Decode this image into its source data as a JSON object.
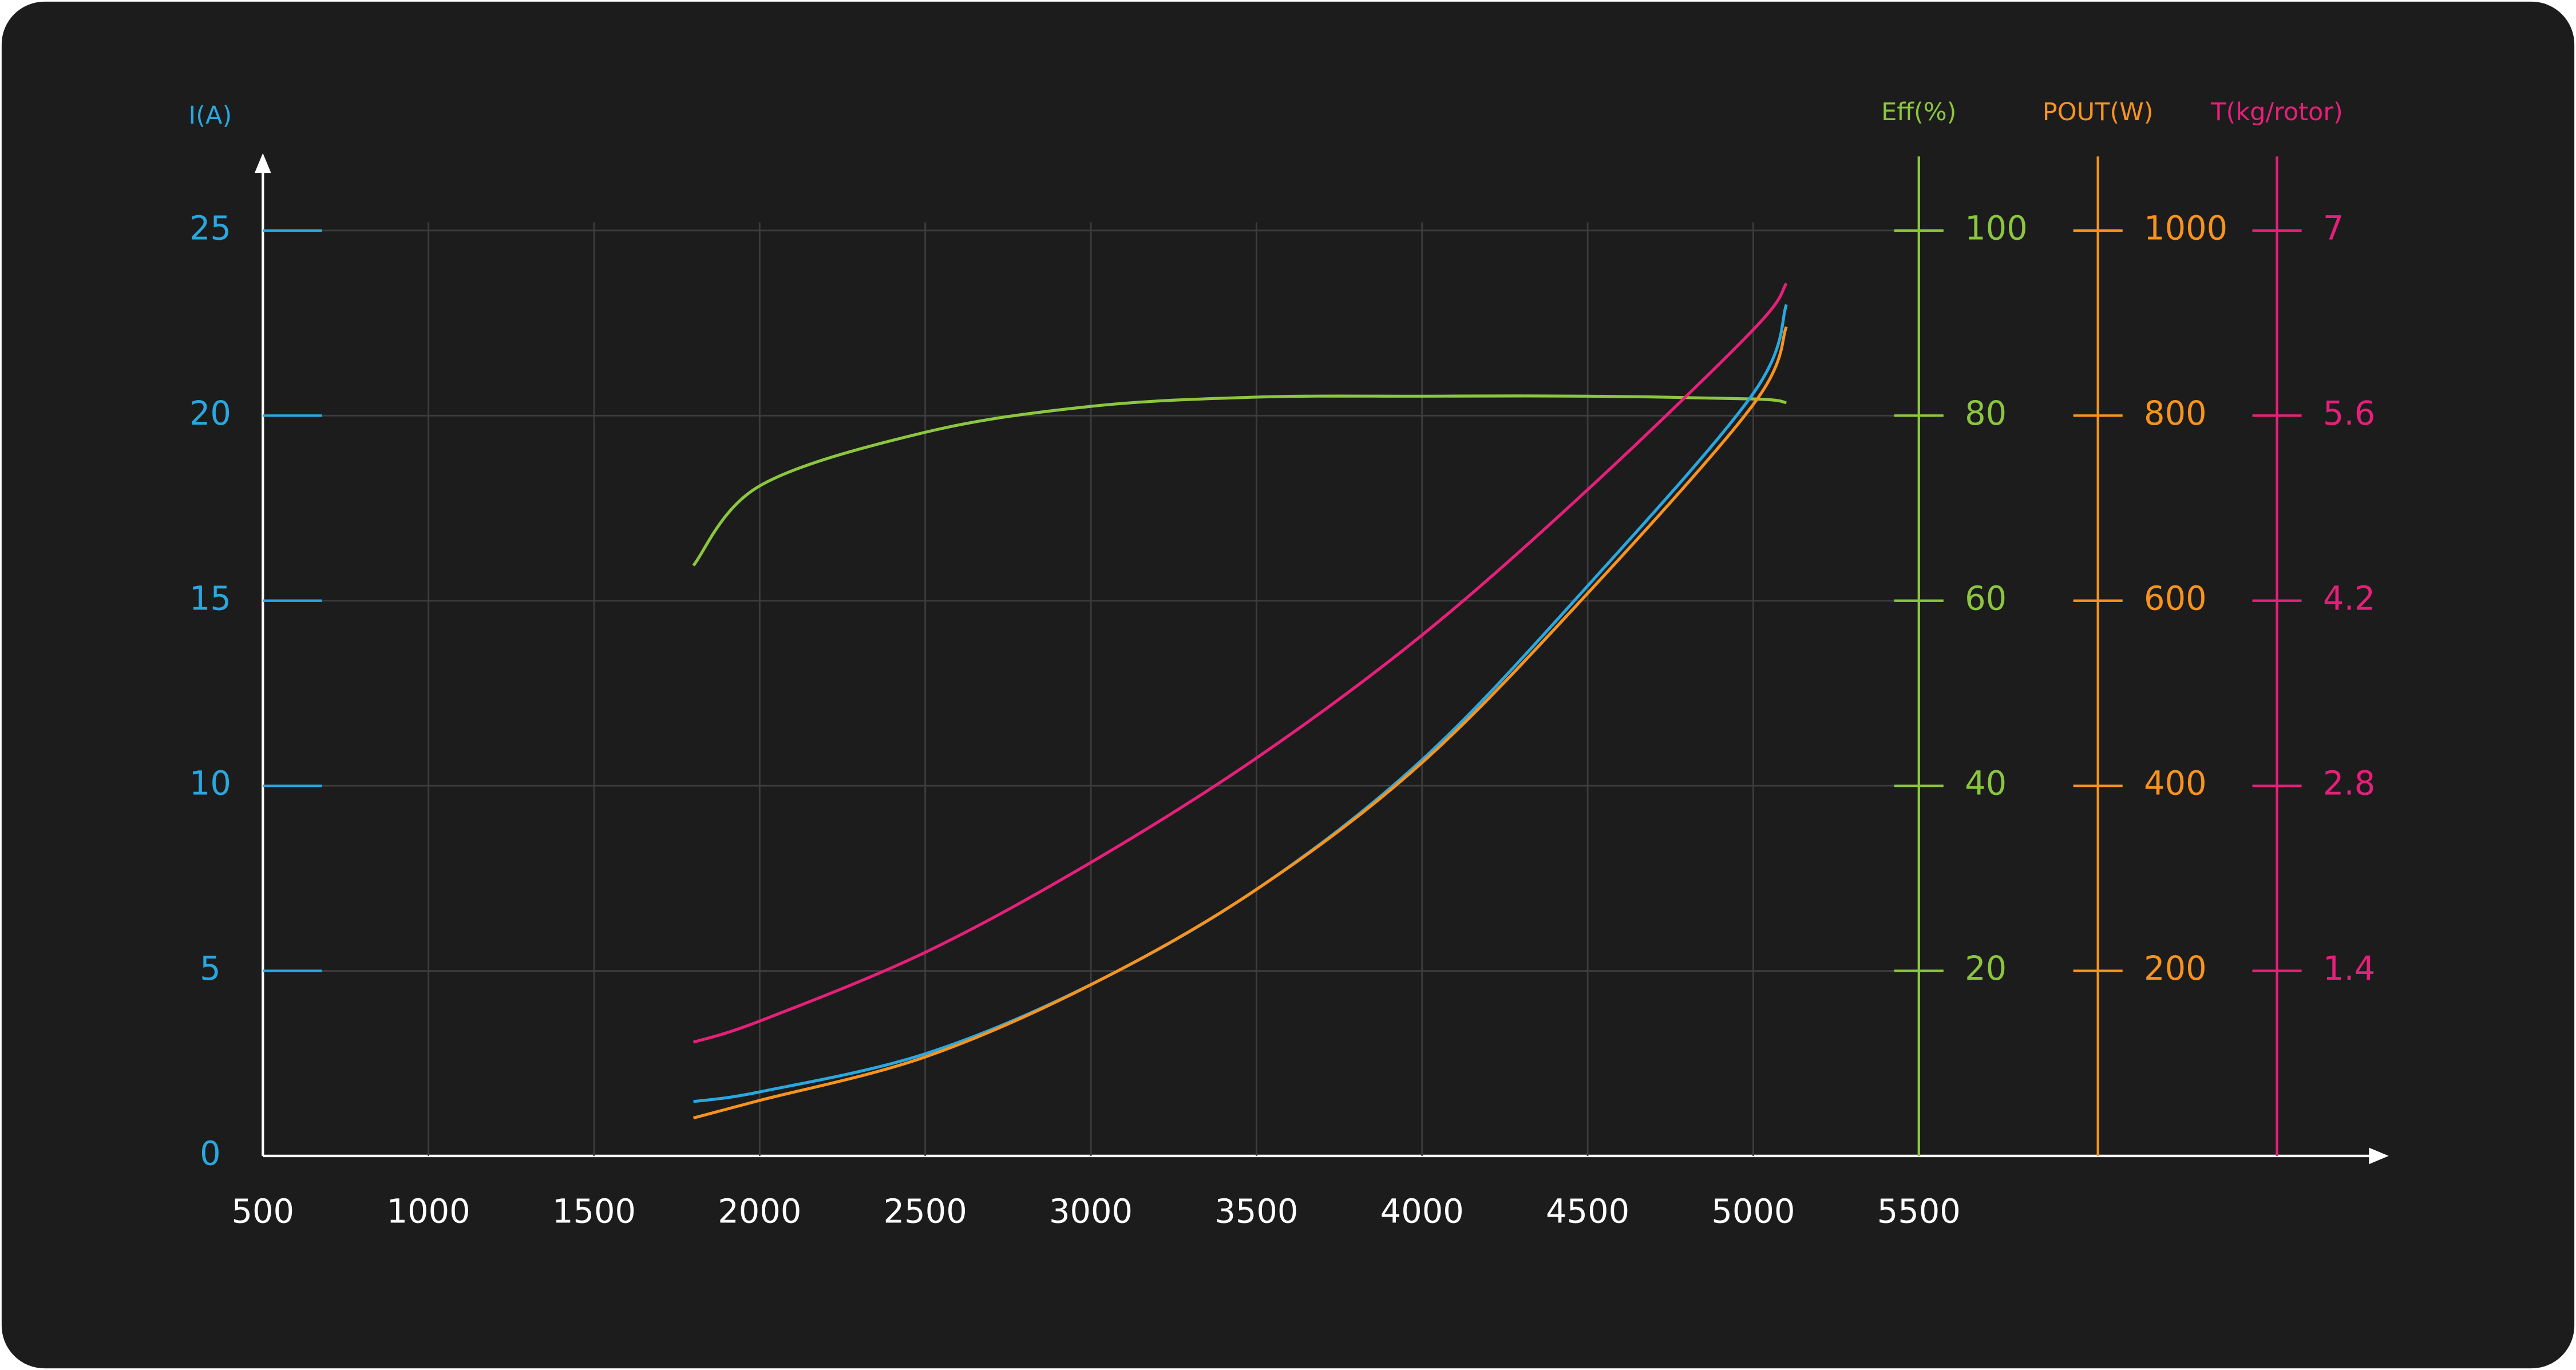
{
  "chart_data": {
    "type": "line",
    "x": [
      1800,
      2000,
      2500,
      3000,
      3500,
      4000,
      4500,
      5000,
      5100
    ],
    "xlim": [
      500,
      5500
    ],
    "xticks": [
      500,
      1000,
      1500,
      2000,
      2500,
      3000,
      3500,
      4000,
      4500,
      5000,
      5500
    ],
    "grid": true,
    "y_axes": [
      {
        "label": "I(A)",
        "color": "#29a8e0",
        "ylim": [
          0,
          25
        ],
        "yticks": [
          0,
          5,
          10,
          15,
          20,
          25
        ]
      },
      {
        "label": "Eff(%)",
        "color": "#8cc63f",
        "ylim": [
          0,
          100
        ],
        "yticks": [
          20,
          40,
          60,
          80,
          100
        ]
      },
      {
        "label": "POUT(W)",
        "color": "#f7931e",
        "ylim": [
          0,
          1000
        ],
        "yticks": [
          200,
          400,
          600,
          800,
          1000
        ]
      },
      {
        "label": "T(kg/rotor)",
        "color": "#e6207a",
        "ylim": [
          0,
          7
        ],
        "yticks": [
          1.4,
          2.8,
          4.2,
          5.6,
          7
        ]
      }
    ],
    "series": [
      {
        "axis": 1,
        "color": "#8cc63f",
        "values": [
          63.8,
          72.4,
          78.2,
          81,
          82,
          82.1,
          82.1,
          81.8,
          81.4
        ]
      },
      {
        "axis": 3,
        "color": "#e6207a",
        "values": [
          0.86,
          1.02,
          1.54,
          2.22,
          3.01,
          3.94,
          5.04,
          6.25,
          6.6
        ]
      },
      {
        "axis": 0,
        "color": "#29a8e0",
        "values": [
          1.47,
          1.73,
          2.76,
          4.63,
          7.2,
          10.7,
          15.4,
          20.6,
          23
        ]
      },
      {
        "axis": 2,
        "color": "#f7931e",
        "values": [
          41,
          60,
          107,
          185,
          288,
          425,
          608,
          812,
          896
        ]
      }
    ]
  }
}
